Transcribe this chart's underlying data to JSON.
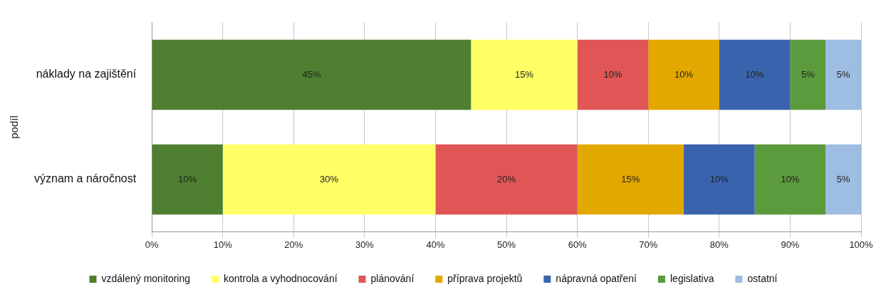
{
  "chart_data": {
    "type": "bar",
    "orientation": "horizontal",
    "stacked": true,
    "ylabel": "podíl",
    "categories": [
      "náklady na zajištění",
      "význam a náročnost"
    ],
    "series": [
      {
        "name": "vzdálený monitoring",
        "color": "#4f7f30",
        "values": [
          45,
          10
        ],
        "value_labels": [
          "45%",
          "10%"
        ]
      },
      {
        "name": "kontrola a vyhodnocování",
        "color": "#ffff66",
        "values": [
          15,
          30
        ],
        "value_labels": [
          "15%",
          "30%"
        ]
      },
      {
        "name": "plánování",
        "color": "#e05656",
        "values": [
          10,
          20
        ],
        "value_labels": [
          "10%",
          "20%"
        ]
      },
      {
        "name": "příprava projektů",
        "color": "#e3a800",
        "values": [
          10,
          15
        ],
        "value_labels": [
          "10%",
          "15%"
        ]
      },
      {
        "name": "nápravná opatření",
        "color": "#3a63ad",
        "values": [
          10,
          10
        ],
        "value_labels": [
          "10%",
          "10%"
        ]
      },
      {
        "name": "legislativa",
        "color": "#5c9a3e",
        "values": [
          5,
          10
        ],
        "value_labels": [
          "5%",
          "10%"
        ]
      },
      {
        "name": "ostatní",
        "color": "#9dbde3",
        "values": [
          5,
          5
        ],
        "value_labels": [
          "5%",
          "5%"
        ]
      }
    ],
    "xlim": [
      0,
      100
    ],
    "xticks": [
      {
        "value": 0,
        "label": "0%"
      },
      {
        "value": 10,
        "label": "10%"
      },
      {
        "value": 20,
        "label": "20%"
      },
      {
        "value": 30,
        "label": "30%"
      },
      {
        "value": 40,
        "label": "40%"
      },
      {
        "value": 50,
        "label": "50%"
      },
      {
        "value": 60,
        "label": "60%"
      },
      {
        "value": 70,
        "label": "70%"
      },
      {
        "value": 80,
        "label": "80%"
      },
      {
        "value": 90,
        "label": "90%"
      },
      {
        "value": 100,
        "label": "100%"
      }
    ],
    "grid": "x",
    "legend": "bottom"
  }
}
